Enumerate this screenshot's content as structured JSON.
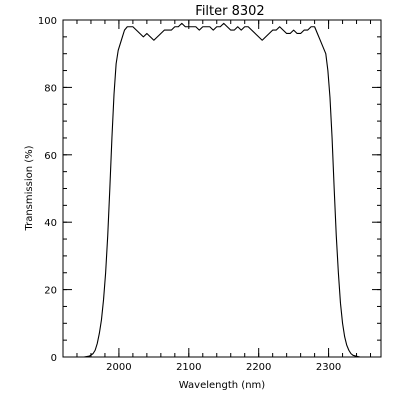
{
  "chart_data": {
    "type": "line",
    "title": "Filter 8302",
    "xlabel": "Wavelength (nm)",
    "ylabel": "Transmission (%)",
    "xlim": [
      1920,
      2375
    ],
    "ylim": [
      0,
      100
    ],
    "grid": false,
    "x_major_ticks": [
      2000,
      2100,
      2200,
      2300
    ],
    "x_minor_step": 20,
    "y_major_ticks": [
      0,
      20,
      40,
      60,
      80,
      100
    ],
    "y_minor_step": 5,
    "series": [
      {
        "x": [
          1950,
          1958,
          1963,
          1966,
          1969,
          1972,
          1975,
          1978,
          1981,
          1984,
          1987,
          1990,
          1993,
          1996,
          1999,
          2002,
          2005,
          2008,
          2012,
          2016,
          2020,
          2025,
          2030,
          2035,
          2040,
          2045,
          2050,
          2055,
          2060,
          2065,
          2070,
          2075,
          2080,
          2085,
          2090,
          2095,
          2100,
          2105,
          2110,
          2115,
          2120,
          2125,
          2130,
          2135,
          2140,
          2145,
          2150,
          2155,
          2160,
          2165,
          2170,
          2175,
          2180,
          2185,
          2190,
          2195,
          2200,
          2205,
          2210,
          2215,
          2220,
          2225,
          2230,
          2235,
          2240,
          2245,
          2250,
          2255,
          2260,
          2265,
          2270,
          2275,
          2280,
          2284,
          2288,
          2292,
          2296,
          2299,
          2302,
          2305,
          2308,
          2311,
          2314,
          2317,
          2320,
          2323,
          2326,
          2329,
          2332,
          2335,
          2340,
          2345,
          2350
        ],
        "y": [
          0,
          0.3,
          1,
          2,
          4,
          7,
          11,
          17,
          25,
          36,
          50,
          65,
          78,
          87,
          91,
          93,
          95,
          97,
          98,
          98,
          98,
          97,
          96,
          95,
          96,
          95,
          94,
          95,
          96,
          97,
          97,
          97,
          98,
          98,
          99,
          98,
          98,
          98,
          98,
          97,
          98,
          98,
          98,
          97,
          98,
          98,
          99,
          98,
          97,
          97,
          98,
          97,
          98,
          98,
          97,
          96,
          95,
          94,
          95,
          96,
          97,
          97,
          98,
          97,
          96,
          96,
          97,
          96,
          96,
          97,
          97,
          98,
          98,
          96,
          94,
          92,
          90,
          85,
          77,
          65,
          50,
          36,
          25,
          16,
          10,
          6,
          3.5,
          2,
          1,
          0.5,
          0.2,
          0,
          0
        ]
      }
    ]
  }
}
